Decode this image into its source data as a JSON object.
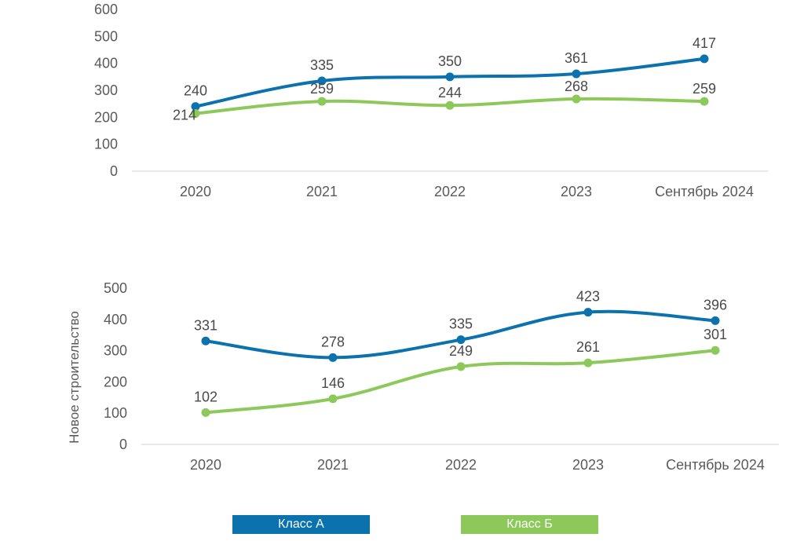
{
  "colors": {
    "class_a": "#0b72ad",
    "class_b": "#8cc85a",
    "axis": "#d9d9d9"
  },
  "legend": [
    {
      "label": "Класс А",
      "color": "#0b72ad"
    },
    {
      "label": "Класс Б",
      "color": "#8cc85a"
    }
  ],
  "chart_data": [
    {
      "type": "line",
      "categories": [
        "2020",
        "2021",
        "2022",
        "2023",
        "Сентябрь 2024"
      ],
      "ylim": [
        0,
        600
      ],
      "yticks": [
        0,
        100,
        200,
        300,
        400,
        500,
        600
      ],
      "ylabel": "",
      "grid": false,
      "series": [
        {
          "name": "Класс А",
          "values": [
            240,
            335,
            350,
            361,
            417
          ]
        },
        {
          "name": "Класс Б",
          "values": [
            214,
            259,
            244,
            268,
            259
          ]
        }
      ]
    },
    {
      "type": "line",
      "categories": [
        "2020",
        "2021",
        "2022",
        "2023",
        "Сентябрь 2024"
      ],
      "ylim": [
        0,
        500
      ],
      "yticks": [
        0,
        100,
        200,
        300,
        400,
        500
      ],
      "ylabel": "Новое строительство",
      "grid": false,
      "series": [
        {
          "name": "Класс А",
          "values": [
            331,
            278,
            335,
            423,
            396
          ]
        },
        {
          "name": "Класс Б",
          "values": [
            102,
            146,
            249,
            261,
            301
          ]
        }
      ]
    }
  ]
}
